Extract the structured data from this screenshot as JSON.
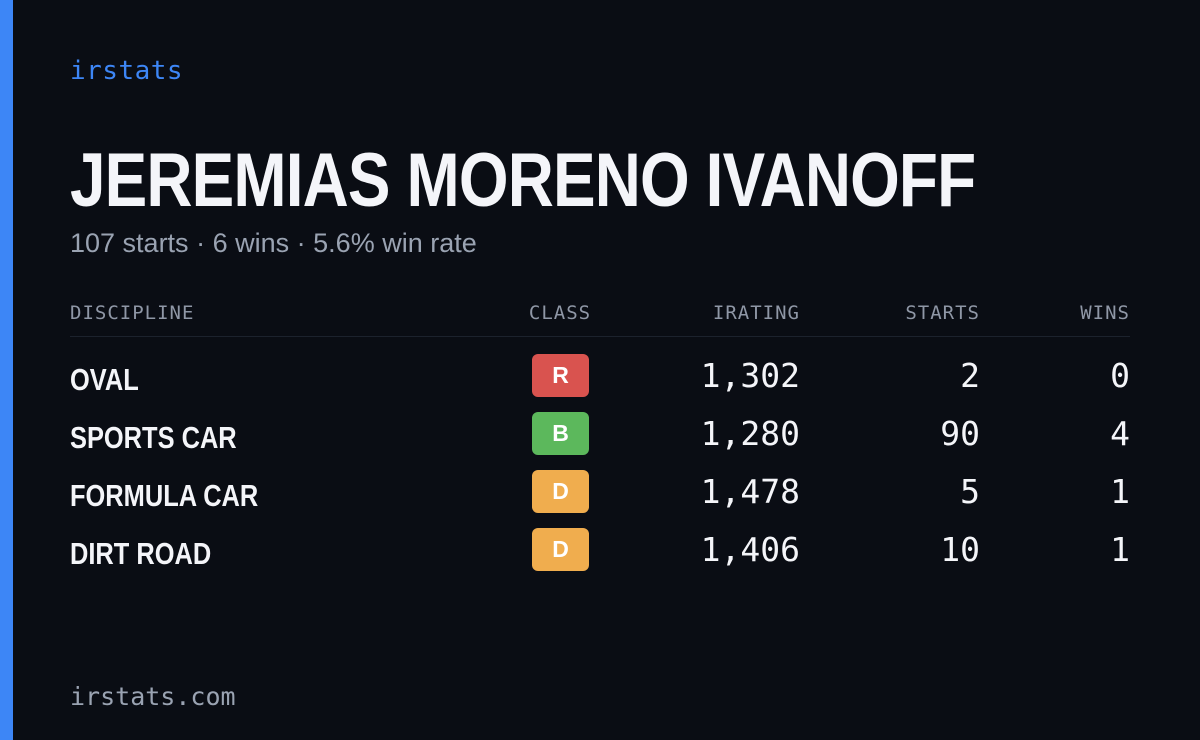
{
  "brand": "irstats",
  "player": {
    "name": "JEREMIAS MORENO IVANOFF",
    "summary": {
      "starts": "107 starts",
      "wins": "6 wins",
      "win_rate": "5.6% win rate",
      "separator": "·"
    }
  },
  "colors": {
    "accent": "#3d86f6",
    "background": "#0a0d14",
    "class_R": "#d9534f",
    "class_B": "#5cb85c",
    "class_D": "#f0ad4e"
  },
  "table": {
    "headers": {
      "discipline": "DISCIPLINE",
      "class": "CLASS",
      "irating": "IRATING",
      "starts": "STARTS",
      "wins": "WINS"
    },
    "rows": [
      {
        "discipline": "OVAL",
        "class": "R",
        "irating": "1,302",
        "starts": "2",
        "wins": "0"
      },
      {
        "discipline": "SPORTS CAR",
        "class": "B",
        "irating": "1,280",
        "starts": "90",
        "wins": "4"
      },
      {
        "discipline": "FORMULA CAR",
        "class": "D",
        "irating": "1,478",
        "starts": "5",
        "wins": "1"
      },
      {
        "discipline": "DIRT ROAD",
        "class": "D",
        "irating": "1,406",
        "starts": "10",
        "wins": "1"
      }
    ]
  },
  "footer": {
    "domain": "irstats.com"
  }
}
